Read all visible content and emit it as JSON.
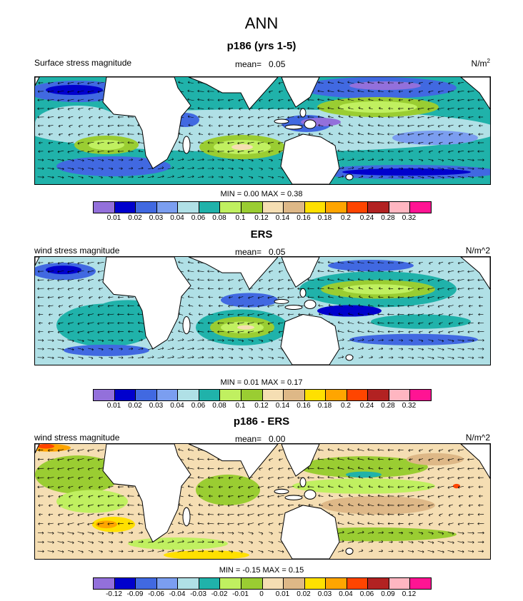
{
  "title": "ANN",
  "palette": [
    "#9370DB",
    "#0000CD",
    "#4169E1",
    "#7B9EF0",
    "#B0E0E6",
    "#20B2AA",
    "#C0F060",
    "#9ACD32",
    "#F5DEB3",
    "#DEB887",
    "#FFE000",
    "#FFA500",
    "#FF4500",
    "#B22222",
    "#FFB6C1",
    "#FF1493"
  ],
  "panels": [
    {
      "title": "p186 (yrs 1-5)",
      "left_label": "Surface stress magnitude",
      "mean_label": "mean=",
      "mean": "0.05",
      "units": "N/m",
      "units_sup": "2",
      "minmax": "MIN =  0.00 MAX =   0.38",
      "levels": [
        "0.01",
        "0.02",
        "0.03",
        "0.04",
        "0.06",
        "0.08",
        "0.1",
        "0.12",
        "0.14",
        "0.16",
        "0.18",
        "0.2",
        "0.24",
        "0.28",
        "0.32"
      ]
    },
    {
      "title": "ERS",
      "left_label": "wind stress magnitude",
      "mean_label": "mean=",
      "mean": "0.05",
      "units": "N/m^2",
      "units_sup": "",
      "minmax": "MIN =  0.01 MAX =   0.17",
      "levels": [
        "0.01",
        "0.02",
        "0.03",
        "0.04",
        "0.06",
        "0.08",
        "0.1",
        "0.12",
        "0.14",
        "0.16",
        "0.18",
        "0.2",
        "0.24",
        "0.28",
        "0.32"
      ]
    },
    {
      "title": "p186 - ERS",
      "left_label": "wind stress magnitude",
      "mean_label": "mean=",
      "mean": "0.00",
      "units": "N/m^2",
      "units_sup": "",
      "minmax": "MIN = -0.15 MAX =   0.15",
      "levels": [
        "-0.12",
        "-0.09",
        "-0.06",
        "-0.04",
        "-0.03",
        "-0.02",
        "-0.01",
        "0",
        "0.01",
        "0.02",
        "0.03",
        "0.04",
        "0.06",
        "0.09",
        "0.12"
      ]
    }
  ]
}
